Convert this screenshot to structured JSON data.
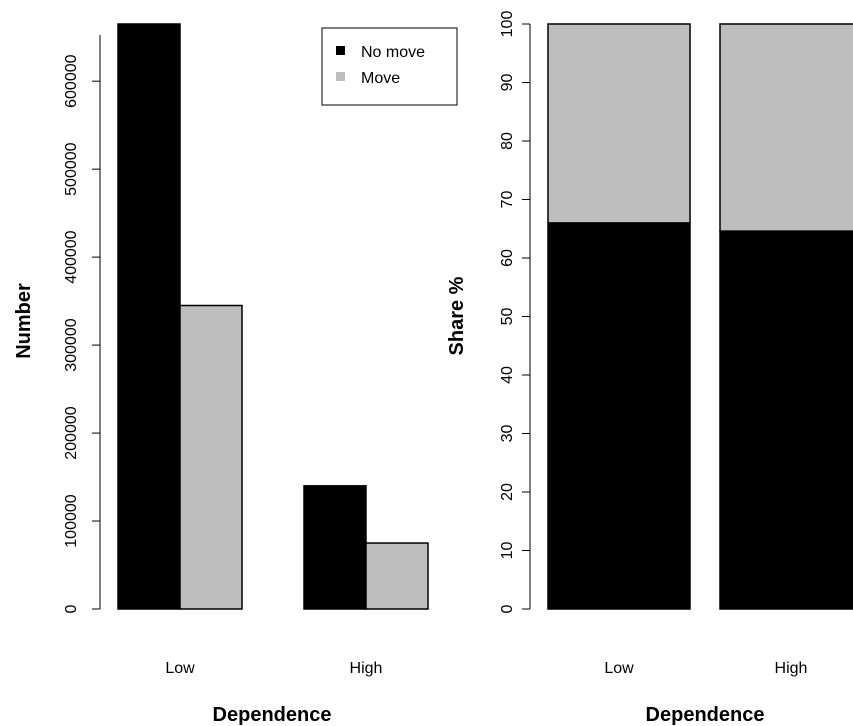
{
  "chart_data": [
    {
      "type": "bar",
      "bar_mode": "grouped",
      "categories": [
        "Low",
        "High"
      ],
      "series": [
        {
          "name": "No move",
          "color": "#000000",
          "values": [
            665000,
            140000
          ]
        },
        {
          "name": "Move",
          "color": "#bebebe",
          "values": [
            345000,
            75000
          ]
        }
      ],
      "xlabel": "Dependence",
      "ylabel": "Number",
      "ylim": [
        0,
        665000
      ],
      "yticks": [
        "0",
        "100000",
        "200000",
        "300000",
        "400000",
        "500000",
        "600000"
      ],
      "legend": {
        "entries": [
          "No move",
          "Move"
        ],
        "position": "top-right"
      },
      "grid": false
    },
    {
      "type": "bar",
      "bar_mode": "stacked",
      "categories": [
        "Low",
        "High"
      ],
      "series": [
        {
          "name": "No move",
          "color": "#000000",
          "values": [
            66,
            64.6
          ]
        },
        {
          "name": "Move",
          "color": "#bebebe",
          "values": [
            34,
            35.4
          ]
        }
      ],
      "xlabel": "Dependence",
      "ylabel": "Share %",
      "ylim": [
        0,
        100
      ],
      "yticks": [
        "0",
        "10",
        "20",
        "30",
        "40",
        "50",
        "60",
        "70",
        "80",
        "90",
        "100"
      ],
      "grid": false
    }
  ]
}
